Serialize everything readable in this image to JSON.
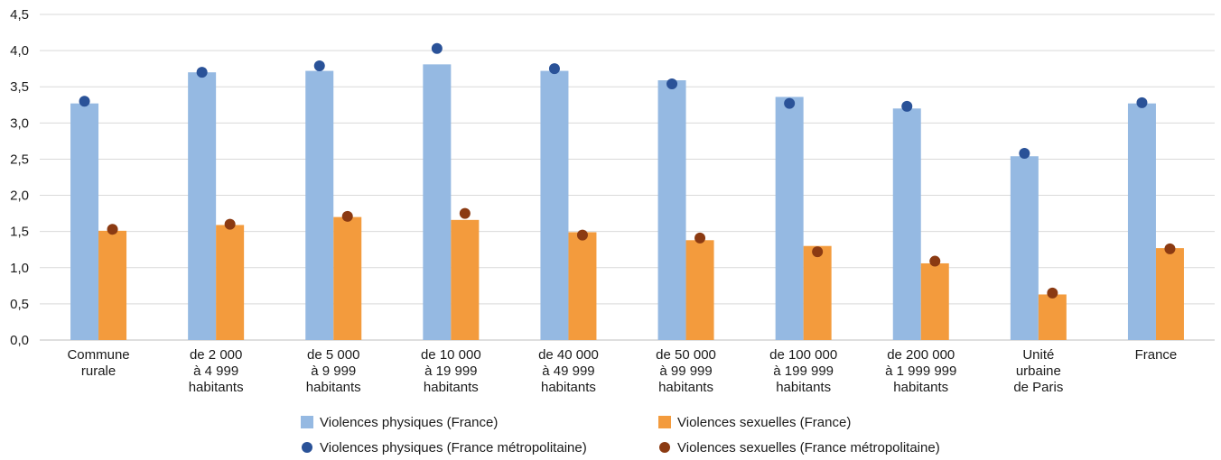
{
  "chart_data": {
    "type": "bar",
    "categories": [
      [
        "Commune",
        "rurale"
      ],
      [
        "de 2 000",
        "à 4 999",
        "habitants"
      ],
      [
        "de 5 000",
        "à 9 999",
        "habitants"
      ],
      [
        "de 10 000",
        "à 19 999",
        "habitants"
      ],
      [
        "de 40 000",
        "à 49 999",
        "habitants"
      ],
      [
        "de 50 000",
        "à 99 999",
        "habitants"
      ],
      [
        "de 100 000",
        "à 199 999",
        "habitants"
      ],
      [
        "de 200 000",
        "à 1 999 999",
        "habitants"
      ],
      [
        "Unité",
        "urbaine",
        "de Paris"
      ],
      [
        "France"
      ]
    ],
    "ylim": [
      0,
      4.5
    ],
    "yticks": [
      "0,0",
      "0,5",
      "1,0",
      "1,5",
      "2,0",
      "2,5",
      "3,0",
      "3,5",
      "4,0",
      "4,5"
    ],
    "grid": true,
    "legend_position": "bottom",
    "bar_series": [
      {
        "name": "Violences physiques (France)",
        "color": "#95b9e2",
        "values": [
          3.27,
          3.7,
          3.72,
          3.81,
          3.72,
          3.59,
          3.36,
          3.2,
          2.54,
          3.27
        ]
      },
      {
        "name": "Violences sexuelles (France)",
        "color": "#f39b3d",
        "values": [
          1.51,
          1.59,
          1.7,
          1.66,
          1.49,
          1.38,
          1.3,
          1.06,
          0.63,
          1.27
        ]
      }
    ],
    "point_series": [
      {
        "name": "Violences physiques (France métropolitaine)",
        "color": "#2a5298",
        "values": [
          3.3,
          3.7,
          3.79,
          4.03,
          3.75,
          3.54,
          3.27,
          3.23,
          2.58,
          3.28
        ]
      },
      {
        "name": "Violences sexuelles (France métropolitaine)",
        "color": "#8b3a12",
        "values": [
          1.53,
          1.6,
          1.71,
          1.75,
          1.45,
          1.41,
          1.22,
          1.09,
          0.65,
          1.26
        ]
      }
    ]
  }
}
